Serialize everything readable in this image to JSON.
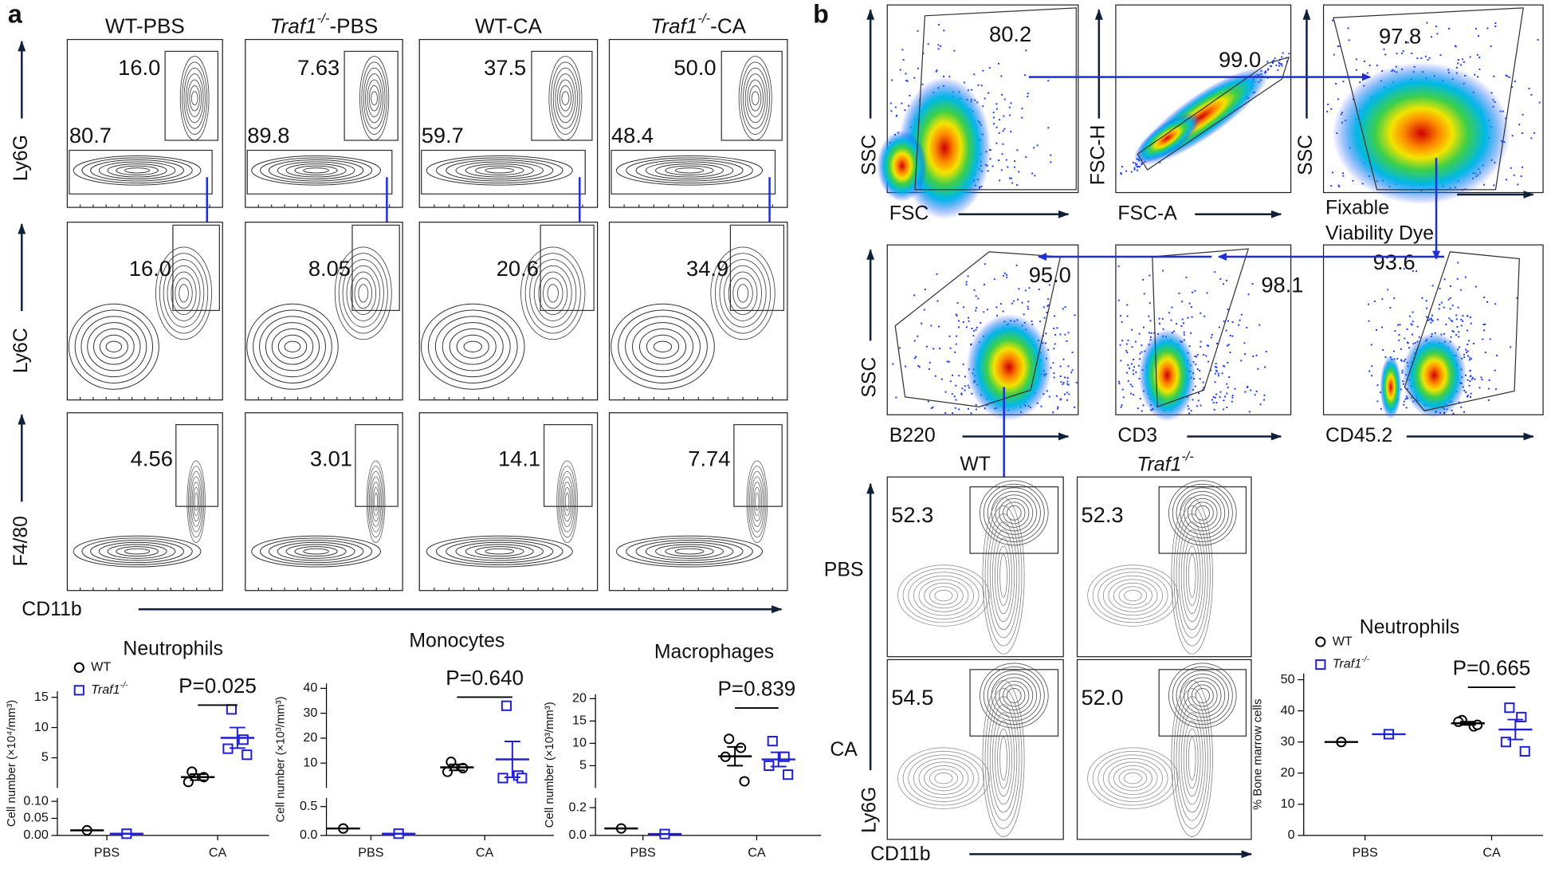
{
  "panel_labels": [
    "a",
    "b"
  ],
  "flow_a": {
    "columns": [
      "WT-PBS",
      "Traf1-/--PBS",
      "WT-CA",
      "Traf1-/--CA"
    ],
    "y_labels": [
      "Ly6G",
      "Ly6C",
      "F4/80"
    ],
    "x_label": "CD11b",
    "gates": [
      [
        [
          "16.0",
          "80.7"
        ],
        [
          "7.63",
          "89.8"
        ],
        [
          "37.5",
          "59.7"
        ],
        [
          "50.0",
          "48.4"
        ]
      ],
      [
        [
          "16.0"
        ],
        [
          "8.05"
        ],
        [
          "20.6"
        ],
        [
          "34.9"
        ]
      ],
      [
        [
          "4.56"
        ],
        [
          "3.01"
        ],
        [
          "14.1"
        ],
        [
          "7.74"
        ]
      ]
    ]
  },
  "flow_b": {
    "plots": [
      {
        "y_label": "SSC",
        "x_label": "FSC",
        "gate": "80.2"
      },
      {
        "y_label": "FSC-H",
        "x_label": "FSC-A",
        "gate": "99.0"
      },
      {
        "y_label": "SSC",
        "x_label": [
          "Fixable",
          "Viability Dye"
        ],
        "gate": "97.8"
      },
      {
        "y_label": "SSC",
        "x_label": "B220",
        "gate": "95.0"
      },
      {
        "x_label": "CD3",
        "gate": "98.1"
      },
      {
        "x_label": "CD45.2",
        "gate": "93.6"
      }
    ],
    "columns": [
      "WT",
      "Traf1-/-"
    ],
    "rows": [
      "PBS",
      "CA"
    ],
    "gates": [
      [
        "52.3",
        "52.3"
      ],
      [
        "54.5",
        "52.0"
      ]
    ],
    "y_label": "Ly6G",
    "x_label": "CD11b"
  },
  "chart_data": [
    {
      "type": "dot",
      "title": "Neutrophils",
      "y_label": "Cell number (×10⁴/mm³)",
      "categories": [
        "PBS",
        "CA"
      ],
      "legend": true,
      "p_label": "P=0.025",
      "segments": [
        {
          "ylim": [
            0,
            0.11
          ],
          "yticks": [
            {
              "value": 0,
              "label": "0.00"
            },
            0.05,
            {
              "value": 0.1,
              "label": "0.10"
            }
          ]
        },
        {
          "ylim": [
            0,
            16
          ],
          "yticks": [
            5,
            10,
            15
          ]
        }
      ],
      "series": [
        {
          "name": "WT",
          "color": "#000000",
          "marker": "circle",
          "values": [
            [
              0.015
            ],
            [
              2.7,
              1.8,
              1.0
            ]
          ],
          "mean": [
            0.015,
            1.8
          ],
          "sem": [
            null,
            0.5
          ]
        },
        {
          "name": "Traf1-/-",
          "color": "#1f1fd6",
          "marker": "square",
          "values": [
            [
              0.005
            ],
            [
              13,
              8,
              6.5,
              5.5
            ]
          ],
          "mean": [
            0.005,
            8.3
          ],
          "sem": [
            null,
            1.7
          ]
        }
      ]
    },
    {
      "type": "dot",
      "title": "Monocytes",
      "y_label": "Cell number (×10³/mm³)",
      "categories": [
        "PBS",
        "CA"
      ],
      "legend": false,
      "p_label": "P=0.640",
      "segments": [
        {
          "ylim": [
            0,
            0.65
          ],
          "yticks": [
            {
              "value": 0,
              "label": "0.0"
            },
            0.5
          ]
        },
        {
          "ylim": [
            0,
            42
          ],
          "yticks": [
            10,
            20,
            30,
            40
          ]
        }
      ],
      "series": [
        {
          "name": "WT",
          "color": "#000000",
          "marker": "circle",
          "values": [
            [
              0.12
            ],
            [
              10.5,
              8,
              6.5
            ]
          ],
          "mean": [
            0.12,
            8.3
          ],
          "sem": [
            null,
            1.2
          ]
        },
        {
          "name": "Traf1-/-",
          "color": "#1f1fd6",
          "marker": "square",
          "values": [
            [
              0.03
            ],
            [
              33,
              5,
              4,
              4
            ]
          ],
          "mean": [
            0.03,
            11.5
          ],
          "sem": [
            null,
            7.2
          ]
        }
      ]
    },
    {
      "type": "dot",
      "title": "Macrophages",
      "y_label": "Cell number (×10³/mm³)",
      "categories": [
        "PBS",
        "CA"
      ],
      "legend": false,
      "p_label": "P=0.839",
      "segments": [
        {
          "ylim": [
            0,
            0.27
          ],
          "yticks": [
            {
              "value": 0,
              "label": "0.0"
            },
            0.2
          ]
        },
        {
          "ylim": [
            0,
            21
          ],
          "yticks": [
            5,
            10,
            15,
            20
          ]
        }
      ],
      "series": [
        {
          "name": "WT",
          "color": "#000000",
          "marker": "circle",
          "values": [
            [
              0.05
            ],
            [
              11,
              9,
              7,
              1.5
            ]
          ],
          "mean": [
            0.05,
            7.1
          ],
          "sem": [
            null,
            2.1
          ]
        },
        {
          "name": "Traf1-/-",
          "color": "#1f1fd6",
          "marker": "square",
          "values": [
            [
              0.01
            ],
            [
              10.5,
              7,
              5,
              3
            ]
          ],
          "mean": [
            0.01,
            6.4
          ],
          "sem": [
            null,
            1.6
          ]
        }
      ]
    },
    {
      "type": "dot",
      "title": "Neutrophils",
      "y_label": "% Bone marrow cells",
      "categories": [
        "PBS",
        "CA"
      ],
      "legend": true,
      "p_label": "P=0.665",
      "segments": [
        {
          "ylim": [
            0,
            52
          ],
          "yticks": [
            0,
            10,
            20,
            30,
            40,
            50
          ]
        }
      ],
      "series": [
        {
          "name": "WT",
          "color": "#000000",
          "marker": "circle",
          "values": [
            [
              30
            ],
            [
              37,
              35,
              36.5,
              35.5
            ]
          ],
          "mean": [
            30,
            36
          ],
          "sem": [
            null,
            0.5
          ]
        },
        {
          "name": "Traf1-/-",
          "color": "#1f1fd6",
          "marker": "square",
          "values": [
            [
              32.5
            ],
            [
              41,
              38,
              30,
              27
            ]
          ],
          "mean": [
            32.5,
            34
          ],
          "sem": [
            null,
            3.2
          ]
        }
      ]
    }
  ]
}
